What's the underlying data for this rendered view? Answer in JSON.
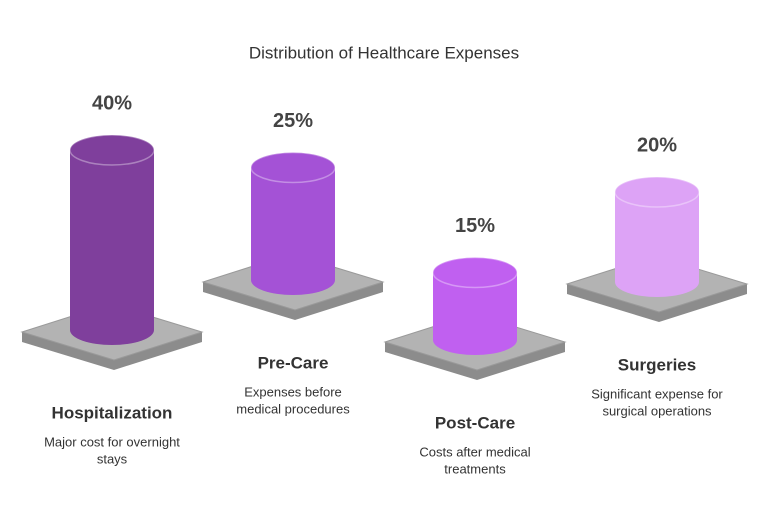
{
  "chart_data": {
    "type": "cylinder",
    "title": "Distribution of Healthcare Expenses",
    "categories": [
      "Hospitalization",
      "Pre-Care",
      "Post-Care",
      "Surgeries"
    ],
    "values": [
      40,
      25,
      15,
      20
    ],
    "value_labels": [
      "40%",
      "25%",
      "15%",
      "20%"
    ],
    "descriptions": [
      [
        "Major cost for overnight",
        "stays"
      ],
      [
        "Expenses before",
        "medical procedures"
      ],
      [
        "Costs after medical",
        "treatments"
      ],
      [
        "Significant expense for",
        "surgical operations"
      ]
    ],
    "colors": [
      "#7f3f9c",
      "#a452d6",
      "#c060f0",
      "#dda3f6"
    ]
  }
}
